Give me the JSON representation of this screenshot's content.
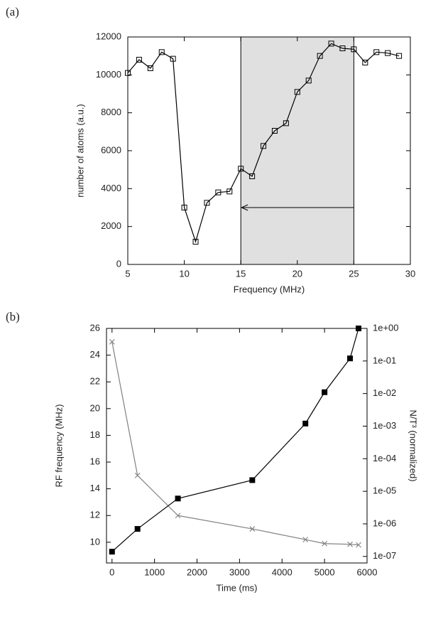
{
  "chart_data": [
    {
      "type": "line",
      "label": "(a)",
      "xlabel": "Frequency (MHz)",
      "ylabel": "number of atoms (a.u.)",
      "x": [
        5,
        6,
        7,
        8,
        9,
        10,
        11,
        12,
        13,
        14,
        15,
        16,
        17,
        18,
        19,
        20,
        21,
        22,
        23,
        24,
        25,
        26,
        27,
        28,
        29
      ],
      "series": [
        {
          "name": "atoms",
          "color": "#000000",
          "marker": "square-open",
          "values": [
            10100,
            10800,
            10350,
            11200,
            10850,
            3000,
            1200,
            3250,
            3800,
            3850,
            5050,
            4650,
            6250,
            7050,
            7450,
            9100,
            9700,
            11000,
            11650,
            11400,
            11350,
            10650,
            11200,
            11150,
            11000
          ]
        }
      ],
      "xlim": [
        5,
        30
      ],
      "xticks": [
        5,
        10,
        15,
        20,
        25,
        30
      ],
      "ylim": [
        0,
        12000
      ],
      "yticks": [
        0,
        2000,
        4000,
        6000,
        8000,
        10000,
        12000
      ],
      "highlight": {
        "x": [
          15,
          25
        ],
        "color": "#e0e0e0",
        "arrow_y": 3000
      }
    },
    {
      "type": "line",
      "label": "(b)",
      "xlabel": "Time (ms)",
      "ylabel": "RF frequency (MHz)",
      "y2label": "N/T³ (normalized)",
      "x": [
        0,
        600,
        1550,
        3300,
        4550,
        5000,
        5600,
        5800
      ],
      "series": [
        {
          "name": "RF frequency",
          "color": "#808080",
          "marker": "x",
          "values": [
            25,
            15,
            12,
            11,
            10.2,
            9.9,
            9.85,
            9.8
          ]
        },
        {
          "name": "N/T³",
          "color": "#000000",
          "marker": "square-filled",
          "axis": "y2",
          "values": [
            1.4e-07,
            7e-07,
            6e-06,
            2.2e-05,
            0.0012,
            0.011,
            0.12,
            1
          ]
        }
      ],
      "xlim": [
        -130,
        6000
      ],
      "xticks": [
        0,
        1000,
        2000,
        3000,
        4000,
        5000,
        6000
      ],
      "ylim": [
        8.45,
        26
      ],
      "yticks": [
        10,
        12,
        14,
        16,
        18,
        20,
        22,
        24,
        26
      ],
      "y2lim": [
        6.3e-08,
        1
      ],
      "y2log": true,
      "y2ticks": [
        {
          "value": 1e-07,
          "label": "1e-07"
        },
        {
          "value": 1e-06,
          "label": "1e-06"
        },
        {
          "value": 1e-05,
          "label": "1e-05"
        },
        {
          "value": 0.0001,
          "label": "1e-04"
        },
        {
          "value": 0.001,
          "label": "1e-03"
        },
        {
          "value": 0.01,
          "label": "1e-02"
        },
        {
          "value": 0.1,
          "label": "1e-01"
        },
        {
          "value": 1,
          "label": "1e+00"
        }
      ]
    }
  ]
}
